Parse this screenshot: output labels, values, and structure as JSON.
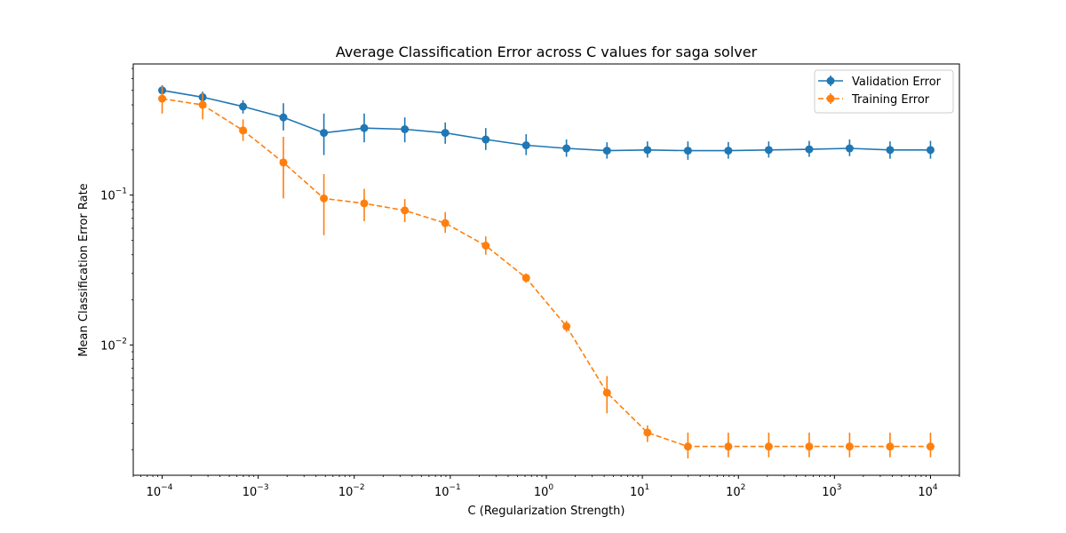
{
  "chart_data": {
    "type": "line",
    "title": "Average Classification Error across C values for saga solver",
    "xlabel": "C (Regularization Strength)",
    "ylabel": "Mean Classification Error Rate",
    "xscale": "log",
    "yscale": "log",
    "xlim": [
      5e-05,
      20000
    ],
    "ylim": [
      0.00135,
      0.75
    ],
    "grid": false,
    "legend_position": "top-right",
    "x": [
      0.0001,
      0.000264,
      0.000695,
      0.00183,
      0.00483,
      0.0127,
      0.0336,
      0.0886,
      0.234,
      0.616,
      1.62,
      4.28,
      11.3,
      29.8,
      78.5,
      207,
      546,
      1438,
      3793,
      10000
    ],
    "x_ticks": [
      {
        "base": "10",
        "exp": "−4"
      },
      {
        "base": "10",
        "exp": "−3"
      },
      {
        "base": "10",
        "exp": "−2"
      },
      {
        "base": "10",
        "exp": "−1"
      },
      {
        "base": "10",
        "exp": "0"
      },
      {
        "base": "10",
        "exp": "1"
      },
      {
        "base": "10",
        "exp": "2"
      },
      {
        "base": "10",
        "exp": "3"
      },
      {
        "base": "10",
        "exp": "4"
      }
    ],
    "y_ticks": [
      {
        "base": "10",
        "exp": "−2"
      },
      {
        "base": "10",
        "exp": "−1"
      }
    ],
    "series": [
      {
        "name": "Validation Error",
        "color": "#1f77b4",
        "linestyle": "solid",
        "marker": "circle",
        "values": [
          0.5,
          0.45,
          0.39,
          0.33,
          0.26,
          0.28,
          0.275,
          0.26,
          0.235,
          0.215,
          0.205,
          0.198,
          0.2,
          0.198,
          0.198,
          0.2,
          0.202,
          0.205,
          0.2,
          0.2
        ],
        "err_lower": [
          0.45,
          0.41,
          0.35,
          0.27,
          0.185,
          0.225,
          0.225,
          0.22,
          0.2,
          0.185,
          0.18,
          0.175,
          0.178,
          0.172,
          0.175,
          0.178,
          0.18,
          0.182,
          0.175,
          0.175
        ],
        "err_upper": [
          0.54,
          0.49,
          0.43,
          0.41,
          0.35,
          0.35,
          0.33,
          0.305,
          0.28,
          0.255,
          0.235,
          0.225,
          0.228,
          0.228,
          0.226,
          0.228,
          0.23,
          0.235,
          0.228,
          0.23
        ]
      },
      {
        "name": "Training Error",
        "color": "#ff7f0e",
        "linestyle": "dashed",
        "marker": "circle",
        "values": [
          0.44,
          0.4,
          0.27,
          0.165,
          0.095,
          0.088,
          0.079,
          0.065,
          0.046,
          0.028,
          0.0133,
          0.0048,
          0.0026,
          0.0021,
          0.0021,
          0.0021,
          0.0021,
          0.0021,
          0.0021,
          0.0021
        ],
        "err_lower": [
          0.35,
          0.32,
          0.23,
          0.095,
          0.054,
          0.067,
          0.066,
          0.056,
          0.04,
          0.026,
          0.0122,
          0.0035,
          0.00225,
          0.00175,
          0.00178,
          0.00178,
          0.00178,
          0.00178,
          0.00178,
          0.00178
        ],
        "err_upper": [
          0.53,
          0.48,
          0.32,
          0.245,
          0.138,
          0.11,
          0.094,
          0.077,
          0.053,
          0.03,
          0.0145,
          0.0062,
          0.0029,
          0.0026,
          0.0026,
          0.0026,
          0.0026,
          0.0026,
          0.0026,
          0.0026
        ]
      }
    ]
  }
}
